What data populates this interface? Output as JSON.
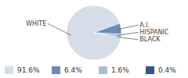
{
  "chart_data": {
    "type": "pie",
    "categories": [
      "WHITE",
      "A.I.",
      "HISPANIC",
      "BLACK"
    ],
    "values": [
      91.6,
      6.4,
      1.6,
      0.4
    ],
    "value_labels": [
      "91.6%",
      "6.4%",
      "1.6%",
      "0.4%"
    ],
    "colors": [
      "#d5dde8",
      "#6a8db5",
      "#a9bdd4",
      "#2c5a85"
    ],
    "legend": "bottom"
  }
}
